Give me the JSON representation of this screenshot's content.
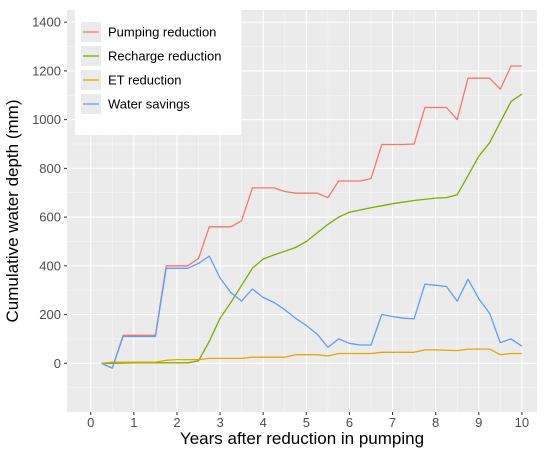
{
  "chart_data": {
    "type": "line",
    "title": "",
    "xlabel": "Years after reduction in pumping",
    "ylabel": "Cumulative water depth (mm)",
    "xlim": [
      -0.55,
      10.35
    ],
    "ylim": [
      -200,
      1450
    ],
    "x_ticks": [
      0,
      1,
      2,
      3,
      4,
      5,
      6,
      7,
      8,
      9,
      10
    ],
    "y_ticks": [
      0,
      200,
      400,
      600,
      800,
      1000,
      1200,
      1400
    ],
    "grid": true,
    "background": "#ebebeb",
    "legend_position": "top-left",
    "series": [
      {
        "name": "Pumping reduction",
        "color": "#f8766d",
        "x": [
          0.25,
          0.5,
          0.75,
          1.0,
          1.25,
          1.5,
          1.75,
          2.0,
          2.25,
          2.5,
          2.75,
          3.0,
          3.25,
          3.5,
          3.75,
          4.0,
          4.25,
          4.5,
          4.75,
          5.0,
          5.25,
          5.5,
          5.75,
          6.0,
          6.25,
          6.5,
          6.75,
          7.0,
          7.25,
          7.5,
          7.75,
          8.0,
          8.25,
          8.5,
          8.75,
          9.0,
          9.25,
          9.5,
          9.75,
          10.0
        ],
        "values": [
          0,
          -20,
          115,
          115,
          115,
          115,
          400,
          400,
          400,
          430,
          560,
          560,
          560,
          585,
          720,
          720,
          720,
          705,
          698,
          698,
          698,
          680,
          748,
          748,
          748,
          758,
          898,
          898,
          898,
          900,
          1050,
          1050,
          1050,
          1000,
          1170,
          1170,
          1170,
          1125,
          1220,
          1220
        ]
      },
      {
        "name": "Recharge reduction",
        "color": "#7cae00",
        "x": [
          0.25,
          0.5,
          1.0,
          1.5,
          2.0,
          2.25,
          2.5,
          2.75,
          3.0,
          3.25,
          3.5,
          3.75,
          4.0,
          4.25,
          4.5,
          4.75,
          5.0,
          5.25,
          5.5,
          5.75,
          6.0,
          6.5,
          7.0,
          7.5,
          8.0,
          8.25,
          8.5,
          8.75,
          9.0,
          9.25,
          9.5,
          9.75,
          10.0
        ],
        "values": [
          0,
          0,
          2,
          2,
          2,
          2,
          10,
          90,
          185,
          250,
          320,
          390,
          428,
          445,
          460,
          475,
          500,
          535,
          570,
          600,
          620,
          638,
          655,
          668,
          678,
          680,
          692,
          770,
          850,
          905,
          990,
          1075,
          1105
        ]
      },
      {
        "name": "ET reduction",
        "color": "#e9a500",
        "x": [
          0.25,
          0.5,
          1.0,
          1.5,
          1.75,
          2.0,
          2.5,
          2.75,
          3.0,
          3.5,
          3.75,
          4.0,
          4.5,
          4.75,
          5.0,
          5.25,
          5.5,
          5.75,
          6.0,
          6.5,
          6.75,
          7.0,
          7.5,
          7.75,
          8.0,
          8.5,
          8.75,
          9.0,
          9.25,
          9.5,
          9.75,
          10.0
        ],
        "values": [
          0,
          5,
          5,
          5,
          12,
          15,
          15,
          20,
          20,
          20,
          25,
          25,
          25,
          35,
          35,
          35,
          30,
          40,
          40,
          40,
          45,
          45,
          45,
          55,
          55,
          52,
          58,
          58,
          58,
          35,
          40,
          40
        ]
      },
      {
        "name": "Water savings",
        "color": "#619cff",
        "x": [
          0.25,
          0.5,
          0.75,
          1.0,
          1.25,
          1.5,
          1.75,
          2.0,
          2.25,
          2.5,
          2.75,
          3.0,
          3.25,
          3.5,
          3.75,
          4.0,
          4.25,
          4.5,
          4.75,
          5.0,
          5.25,
          5.5,
          5.75,
          6.0,
          6.25,
          6.5,
          6.75,
          7.0,
          7.25,
          7.5,
          7.75,
          8.0,
          8.25,
          8.5,
          8.75,
          9.0,
          9.25,
          9.5,
          9.75,
          10.0
        ],
        "values": [
          0,
          -20,
          110,
          110,
          110,
          110,
          390,
          390,
          390,
          410,
          440,
          350,
          290,
          255,
          305,
          270,
          250,
          220,
          185,
          155,
          120,
          65,
          100,
          82,
          75,
          75,
          200,
          192,
          185,
          182,
          325,
          320,
          315,
          255,
          345,
          265,
          205,
          85,
          100,
          70
        ]
      }
    ]
  }
}
